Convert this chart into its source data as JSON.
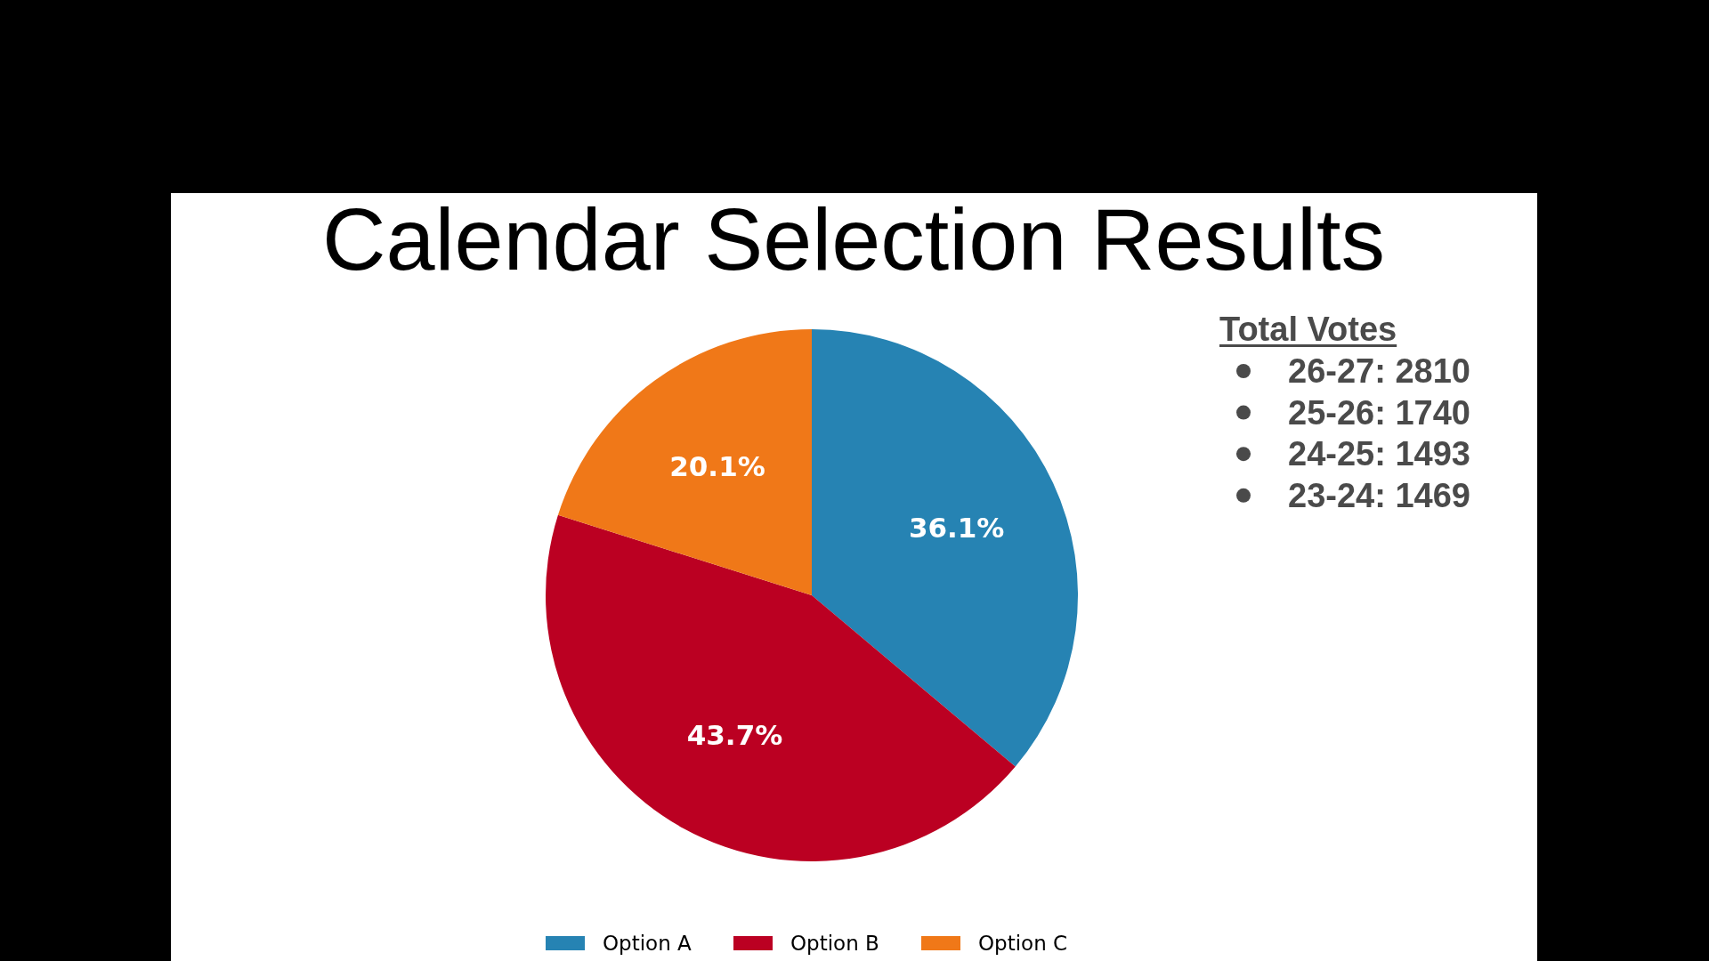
{
  "chart_data": {
    "type": "pie",
    "title": "Calendar Selection Results",
    "categories": [
      "Option A",
      "Option B",
      "Option C"
    ],
    "values": [
      36.1,
      43.7,
      20.1
    ],
    "colors": [
      "#2683b3",
      "#bb0022",
      "#f07818"
    ],
    "value_labels": [
      "36.1%",
      "43.7%",
      "20.1%"
    ],
    "legend": "bottom",
    "annotations": [
      "Total Votes",
      "26-27: 2810",
      "25-26: 1740",
      "24-25: 1493",
      "23-24: 1469"
    ]
  }
}
